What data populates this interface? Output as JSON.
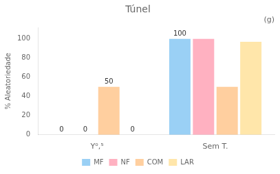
{
  "chart_data": {
    "type": "bar",
    "title": "Túnel",
    "subtitle": "(g)",
    "y_label": "% Aleatoriedade",
    "categories": [
      "Y⁰,⁵",
      "Sem T."
    ],
    "series": [
      {
        "name": "MF",
        "values": [
          0,
          100
        ],
        "value_labels": [
          "0",
          "100"
        ]
      },
      {
        "name": "NF",
        "values": [
          0,
          100
        ],
        "value_labels": [
          "0",
          null
        ]
      },
      {
        "name": "COM",
        "values": [
          50,
          50
        ],
        "value_labels": [
          "50",
          null
        ]
      },
      {
        "name": "LAR",
        "values": [
          0,
          97
        ],
        "value_labels": [
          "0",
          null
        ]
      }
    ],
    "ylim": [
      0,
      112
    ],
    "yticks": [
      0,
      20,
      40,
      60,
      80,
      100
    ],
    "grid": false,
    "legend": "bottom"
  }
}
